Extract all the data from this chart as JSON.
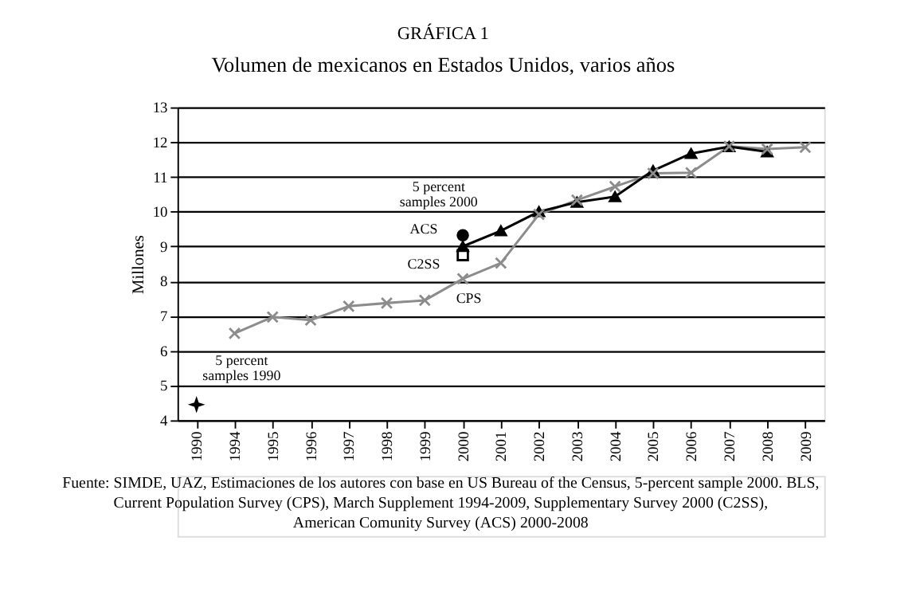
{
  "chart_data": {
    "type": "line",
    "title": "GRÁFICA 1",
    "subtitle": "Volumen de mexicanos en Estados Unidos, varios años",
    "ylabel": "Millones",
    "categories": [
      "1990",
      "1994",
      "1995",
      "1996",
      "1997",
      "1998",
      "1999",
      "2000",
      "2001",
      "2002",
      "2003",
      "2004",
      "2005",
      "2006",
      "2007",
      "2008",
      "2009"
    ],
    "series": [
      {
        "name": "CPS",
        "color": "#8c8c8c",
        "type": "line",
        "marker": "cross",
        "values": [
          null,
          6.5,
          6.97,
          6.88,
          7.28,
          7.37,
          7.45,
          8.07,
          8.52,
          9.92,
          10.33,
          10.72,
          11.1,
          11.12,
          11.88,
          11.8,
          11.85
        ]
      },
      {
        "name": "ACS",
        "color": "#000000",
        "type": "line",
        "marker": "triangle",
        "values": [
          null,
          null,
          null,
          null,
          null,
          null,
          null,
          9.0,
          9.45,
          10.0,
          10.27,
          10.43,
          11.18,
          11.67,
          11.87,
          11.72,
          null
        ]
      },
      {
        "name": "C2SS",
        "color": "#000000",
        "type": "scatter",
        "marker": "square",
        "values": [
          null,
          null,
          null,
          null,
          null,
          null,
          null,
          8.75,
          null,
          null,
          null,
          null,
          null,
          null,
          null,
          null,
          null
        ]
      },
      {
        "name": "5 percent samples 1990",
        "color": "#000000",
        "type": "scatter",
        "marker": "star",
        "values": [
          4.45,
          null,
          null,
          null,
          null,
          null,
          null,
          null,
          null,
          null,
          null,
          null,
          null,
          null,
          null,
          null,
          null
        ]
      },
      {
        "name": "5 percent samples 2000",
        "color": "#000000",
        "type": "scatter",
        "marker": "circle",
        "values": [
          null,
          null,
          null,
          null,
          null,
          null,
          null,
          9.32,
          null,
          null,
          null,
          null,
          null,
          null,
          null,
          null,
          null
        ]
      }
    ],
    "ylim": [
      4,
      13
    ],
    "yticks": [
      4,
      5,
      6,
      7,
      8,
      9,
      10,
      11,
      12,
      13
    ],
    "grid": "y",
    "legend": false,
    "annotations": [
      "Fuente: SIMDE, UAZ, Estimaciones de los autores con base en US Bureau of the Census, 5-percent sample 2000. BLS,",
      "Current Population Survey (CPS), March Supplement 1994-2009, Supplementary Survey 2000 (C2SS),",
      "American Comunity Survey (ACS) 2000-2008"
    ]
  }
}
